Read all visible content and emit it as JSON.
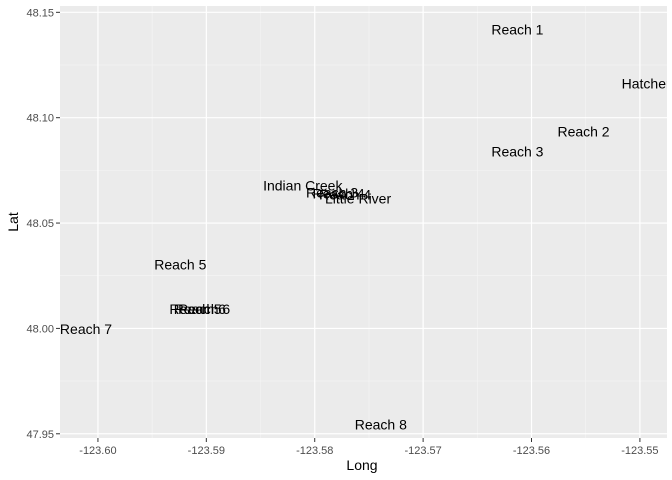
{
  "chart_data": {
    "type": "scatter",
    "title": "",
    "xlabel": "Long",
    "ylabel": "Lat",
    "xlim": [
      -123.6035,
      -123.5475
    ],
    "ylim": [
      47.948,
      48.153
    ],
    "xticks": [
      -123.6,
      -123.59,
      -123.58,
      -123.57,
      -123.56,
      -123.55
    ],
    "xtick_labels": [
      "-123.60",
      "-123.59",
      "-123.58",
      "-123.57",
      "-123.56",
      "-123.55"
    ],
    "yticks": [
      47.95,
      48.0,
      48.05,
      48.1,
      48.15
    ],
    "ytick_labels": [
      "47.95",
      "48.00",
      "48.05",
      "48.10",
      "48.15"
    ],
    "grid": true,
    "points": [
      {
        "label": "Reach 1",
        "x": -123.5613,
        "y": 48.1418
      },
      {
        "label": "Hatchery",
        "x": -123.5491,
        "y": 48.1162
      },
      {
        "label": "Reach 2",
        "x": -123.5552,
        "y": 48.0934
      },
      {
        "label": "Reach 3",
        "x": -123.5613,
        "y": 48.084
      },
      {
        "label": "Indian Creek",
        "x": -123.5811,
        "y": 48.0679
      },
      {
        "label": "Reach 3",
        "x": -123.5784,
        "y": 48.0646
      },
      {
        "label": "Reach 4",
        "x": -123.5778,
        "y": 48.0641
      },
      {
        "label": "Reach 4",
        "x": -123.5772,
        "y": 48.0636
      },
      {
        "label": "Little River",
        "x": -123.576,
        "y": 48.0617
      },
      {
        "label": "Reach 5",
        "x": -123.5924,
        "y": 48.0304
      },
      {
        "label": "Reach 5",
        "x": -123.591,
        "y": 48.0091
      },
      {
        "label": "Reach 6",
        "x": -123.5906,
        "y": 48.0091
      },
      {
        "label": "Reach 6",
        "x": -123.5902,
        "y": 48.0091
      },
      {
        "label": "Reach 7",
        "x": -123.6011,
        "y": 47.9998
      },
      {
        "label": "Reach 8",
        "x": -123.5739,
        "y": 47.9543
      }
    ]
  }
}
